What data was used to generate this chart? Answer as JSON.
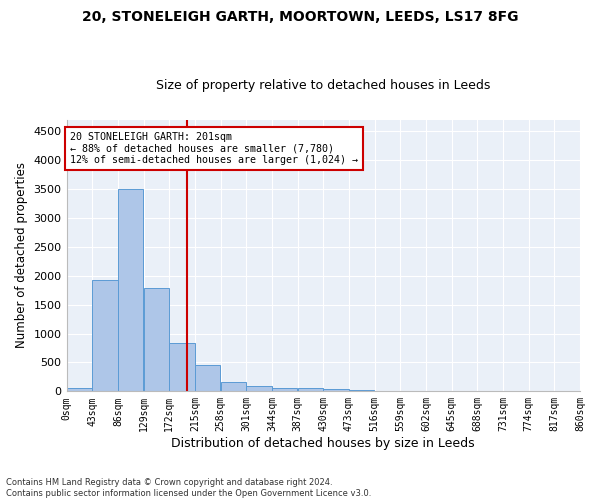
{
  "title": "20, STONELEIGH GARTH, MOORTOWN, LEEDS, LS17 8FG",
  "subtitle": "Size of property relative to detached houses in Leeds",
  "xlabel": "Distribution of detached houses by size in Leeds",
  "ylabel": "Number of detached properties",
  "footnote1": "Contains HM Land Registry data © Crown copyright and database right 2024.",
  "footnote2": "Contains public sector information licensed under the Open Government Licence v3.0.",
  "bar_edges": [
    0,
    43,
    86,
    129,
    172,
    215,
    258,
    301,
    344,
    387,
    430,
    473,
    516,
    559,
    602,
    645,
    688,
    731,
    774,
    817,
    860
  ],
  "bar_heights": [
    50,
    1920,
    3500,
    1790,
    840,
    460,
    165,
    100,
    65,
    55,
    35,
    30,
    0,
    0,
    0,
    0,
    0,
    0,
    0,
    0
  ],
  "bar_color": "#aec6e8",
  "bar_edgecolor": "#5b9bd5",
  "property_size": 201,
  "annotation_title": "20 STONELEIGH GARTH: 201sqm",
  "annotation_line1": "← 88% of detached houses are smaller (7,780)",
  "annotation_line2": "12% of semi-detached houses are larger (1,024) →",
  "vline_color": "#cc0000",
  "annotation_box_edgecolor": "#cc0000",
  "ylim": [
    0,
    4700
  ],
  "plot_bg": "#eaf0f8",
  "yticks": [
    0,
    500,
    1000,
    1500,
    2000,
    2500,
    3000,
    3500,
    4000,
    4500
  ],
  "tick_labels": [
    "0sqm",
    "43sqm",
    "86sqm",
    "129sqm",
    "172sqm",
    "215sqm",
    "258sqm",
    "301sqm",
    "344sqm",
    "387sqm",
    "430sqm",
    "473sqm",
    "516sqm",
    "559sqm",
    "602sqm",
    "645sqm",
    "688sqm",
    "731sqm",
    "774sqm",
    "817sqm",
    "860sqm"
  ]
}
